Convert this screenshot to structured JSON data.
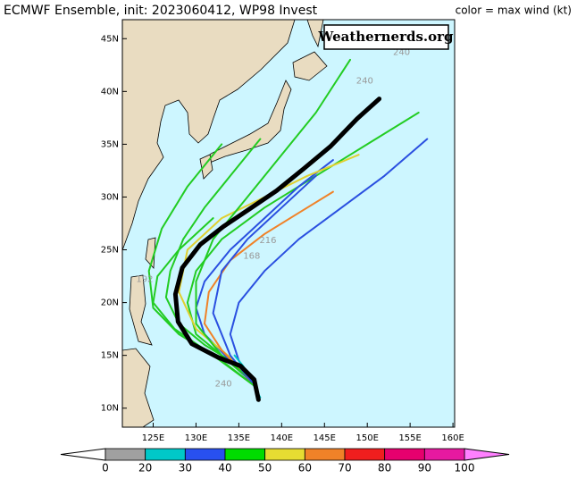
{
  "chart_data": {
    "type": "map",
    "title": "ECMWF Ensemble, init: 2023060412, WP98 Invest",
    "subtitle": "color = max wind (kt)",
    "watermark": "Weathernerds.org",
    "xlim": [
      121.4,
      160.2
    ],
    "ylim": [
      8.2,
      46.8
    ],
    "xticks": [
      {
        "value": 125,
        "label": "125E"
      },
      {
        "value": 130,
        "label": "130E"
      },
      {
        "value": 135,
        "label": "135E"
      },
      {
        "value": 140,
        "label": "140E"
      },
      {
        "value": 145,
        "label": "145E"
      },
      {
        "value": 150,
        "label": "150E"
      },
      {
        "value": 155,
        "label": "155E"
      },
      {
        "value": 160,
        "label": "160E"
      }
    ],
    "yticks": [
      {
        "value": 10,
        "label": "10N"
      },
      {
        "value": 15,
        "label": "15N"
      },
      {
        "value": 20,
        "label": "20N"
      },
      {
        "value": 25,
        "label": "25N"
      },
      {
        "value": 30,
        "label": "30N"
      },
      {
        "value": 35,
        "label": "35N"
      },
      {
        "value": 40,
        "label": "40N"
      },
      {
        "value": 45,
        "label": "45N"
      }
    ],
    "members": [
      {
        "color": "#22cc22",
        "lon": [
          137,
          135,
          131,
          128,
          126.5,
          127,
          128.5,
          131,
          134,
          137.5
        ],
        "lat": [
          12,
          14,
          16,
          18,
          20.5,
          23,
          26,
          29,
          32,
          35.5
        ]
      },
      {
        "color": "#22cc22",
        "lon": [
          136.5,
          133,
          130,
          129,
          130,
          133,
          138,
          144,
          150,
          156
        ],
        "lat": [
          12.5,
          15,
          17,
          20,
          23,
          26,
          29,
          32,
          35,
          38
        ]
      },
      {
        "color": "#2a4fe0",
        "lon": [
          137,
          134,
          131,
          130,
          131,
          134,
          138,
          142,
          146
        ],
        "lat": [
          12,
          14.5,
          17,
          19.5,
          22,
          25,
          28,
          31,
          33.5
        ]
      },
      {
        "color": "#2a4fe0",
        "lon": [
          137,
          135,
          134,
          135,
          138,
          142,
          147,
          152,
          157
        ],
        "lat": [
          12,
          14.5,
          17,
          20,
          23,
          26,
          29,
          32,
          35.5
        ]
      },
      {
        "color": "#e0d030",
        "lon": [
          137,
          134,
          130,
          128,
          129,
          133,
          138,
          143,
          149
        ],
        "lat": [
          12,
          14.8,
          17.5,
          21,
          25,
          28,
          30,
          32,
          34
        ]
      },
      {
        "color": "#f08228",
        "lon": [
          136.5,
          133,
          131,
          131.5,
          134,
          138,
          142,
          146
        ],
        "lat": [
          12.5,
          15.5,
          18,
          21,
          24,
          26.5,
          28.5,
          30.5
        ]
      },
      {
        "color": "#22cc22",
        "lon": [
          137,
          133,
          128,
          125,
          124.5,
          126,
          129,
          133
        ],
        "lat": [
          12,
          14.5,
          17,
          19.5,
          23,
          27,
          31,
          35
        ]
      },
      {
        "color": "#00c8c8",
        "lon": [
          137.5,
          136.5,
          135.5,
          134.5
        ],
        "lat": [
          11,
          12.5,
          14,
          15
        ]
      },
      {
        "color": "#22cc22",
        "lon": [
          136,
          133,
          130,
          130,
          132,
          136,
          140,
          144,
          148
        ],
        "lat": [
          13,
          15,
          18,
          22,
          26,
          30,
          34,
          38,
          43
        ]
      },
      {
        "color": "#2a4fe0",
        "lon": [
          137,
          134,
          132,
          133,
          136,
          140,
          144
        ],
        "lat": [
          12,
          15,
          19,
          23,
          26,
          29,
          32
        ]
      },
      {
        "color": "#22cc22",
        "lon": [
          137,
          132,
          127.5,
          125,
          125.5,
          128,
          132
        ],
        "lat": [
          12,
          15,
          17.5,
          20,
          22.5,
          25,
          28
        ]
      }
    ],
    "mean_track": {
      "color": "#000000",
      "lon": [
        137.3,
        136.8,
        135.2,
        132.6,
        129.5,
        127.9,
        127.6,
        128.4,
        130.5,
        133.2,
        136.3,
        139.4,
        142.6,
        145.7,
        148.8,
        151.4
      ],
      "lat": [
        10.8,
        12.7,
        14.0,
        14.8,
        16.1,
        18.2,
        20.8,
        23.3,
        25.5,
        27.2,
        28.9,
        30.6,
        32.7,
        34.8,
        37.4,
        39.3
      ]
    },
    "hour_labels": [
      {
        "text": "240",
        "lon": 154.0,
        "lat": 43.7
      },
      {
        "text": "240",
        "lon": 149.7,
        "lat": 41.0
      },
      {
        "text": "192",
        "lon": 124.0,
        "lat": 22.2
      },
      {
        "text": "216",
        "lon": 138.4,
        "lat": 25.9
      },
      {
        "text": "168",
        "lon": 136.5,
        "lat": 24.4
      },
      {
        "text": "240",
        "lon": 133.2,
        "lat": 12.3
      }
    ],
    "colorbar": {
      "bounds": [
        0,
        20,
        30,
        40,
        50,
        60,
        70,
        80,
        90,
        100
      ],
      "colors": [
        "#a0a0a0",
        "#00c8c8",
        "#2850f0",
        "#00dc00",
        "#e6dc32",
        "#f08228",
        "#f01e1e",
        "#e6006e",
        "#e619a0"
      ],
      "under_color": "#ffffff",
      "over_color": "#ff80ff"
    }
  }
}
